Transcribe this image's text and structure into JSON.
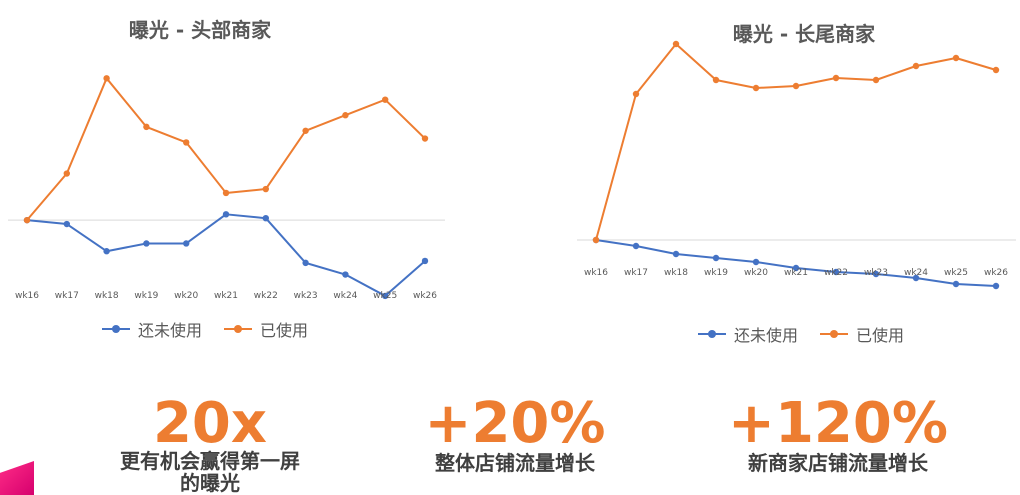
{
  "chart_data": [
    {
      "type": "line",
      "title": "曝光 - 头部商家",
      "categories": [
        "wk16",
        "wk17",
        "wk18",
        "wk19",
        "wk20",
        "wk21",
        "wk22",
        "wk23",
        "wk24",
        "wk25",
        "wk26"
      ],
      "series": [
        {
          "name": "还未使用",
          "color": "#4472c4",
          "values": [
            0,
            -0.2,
            -1.6,
            -1.2,
            -1.2,
            0.3,
            0.1,
            -2.2,
            -2.8,
            -3.9,
            -2.1
          ]
        },
        {
          "name": "已使用",
          "color": "#ed7d31",
          "values": [
            0,
            2.4,
            7.3,
            4.8,
            4.0,
            1.4,
            1.6,
            4.6,
            5.4,
            6.2,
            4.2
          ]
        }
      ],
      "ylim": [
        -5.5,
        8.5
      ],
      "grid": false,
      "legend": "bottom"
    },
    {
      "type": "line",
      "title": "曝光 - 长尾商家",
      "categories": [
        "wk16",
        "wk17",
        "wk18",
        "wk19",
        "wk20",
        "wk21",
        "wk22",
        "wk23",
        "wk24",
        "wk25",
        "wk26"
      ],
      "series": [
        {
          "name": "还未使用",
          "color": "#4472c4",
          "values": [
            0,
            -0.3,
            -0.7,
            -0.9,
            -1.1,
            -1.4,
            -1.6,
            -1.7,
            -1.9,
            -2.2,
            -2.3
          ]
        },
        {
          "name": "已使用",
          "color": "#ed7d31",
          "values": [
            0,
            7.3,
            9.8,
            8.0,
            7.6,
            7.7,
            8.1,
            8.0,
            8.7,
            9.1,
            8.5
          ]
        }
      ],
      "ylim": [
        -3,
        11
      ],
      "grid": false,
      "legend": "bottom"
    }
  ],
  "stats": [
    {
      "number": "20x",
      "caption": "更有机会赢得第一屏的曝光"
    },
    {
      "number": "+20%",
      "caption": "整体店铺流量增长"
    },
    {
      "number": "+120%",
      "caption": "新商家店铺流量增长"
    }
  ]
}
